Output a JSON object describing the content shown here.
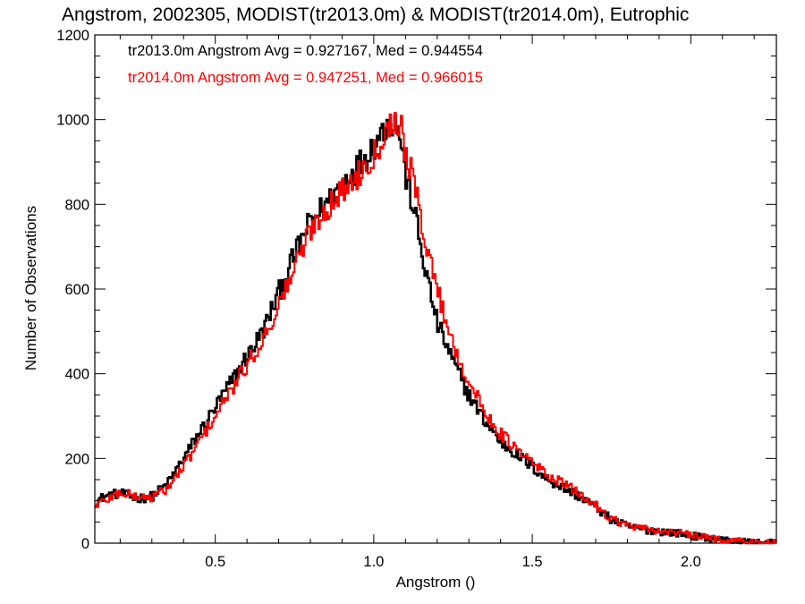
{
  "chart_data": {
    "type": "line",
    "title": "Angstrom, 2002305, MODIST(tr2013.0m) & MODIST(tr2014.0m), Eutrophic",
    "xlabel": "Angstrom ()",
    "ylabel": "Number of Observations",
    "xlim": [
      0.12,
      2.27
    ],
    "ylim": [
      0,
      1200
    ],
    "xticks": [
      0.5,
      1.0,
      1.5,
      2.0
    ],
    "xtick_labels": [
      "0.5",
      "1.0",
      "1.5",
      "2.0"
    ],
    "yticks": [
      0,
      200,
      400,
      600,
      800,
      1000,
      1200
    ],
    "ytick_labels": [
      "0",
      "200",
      "400",
      "600",
      "800",
      "1000",
      "1200"
    ],
    "grid": false,
    "legend_position": "top-left",
    "series": [
      {
        "name": "tr2013.0m",
        "color": "#000000",
        "legend": "tr2013.0m Angstrom Avg = 0.927167, Med = 0.944554",
        "anchors": [
          [
            0.12,
            95
          ],
          [
            0.15,
            110
          ],
          [
            0.2,
            118
          ],
          [
            0.25,
            105
          ],
          [
            0.3,
            110
          ],
          [
            0.35,
            140
          ],
          [
            0.4,
            200
          ],
          [
            0.45,
            260
          ],
          [
            0.5,
            320
          ],
          [
            0.55,
            380
          ],
          [
            0.6,
            440
          ],
          [
            0.65,
            500
          ],
          [
            0.7,
            590
          ],
          [
            0.75,
            680
          ],
          [
            0.8,
            760
          ],
          [
            0.85,
            800
          ],
          [
            0.9,
            850
          ],
          [
            0.95,
            890
          ],
          [
            1.0,
            940
          ],
          [
            1.05,
            1000
          ],
          [
            1.08,
            980
          ],
          [
            1.1,
            870
          ],
          [
            1.13,
            780
          ],
          [
            1.15,
            690
          ],
          [
            1.2,
            520
          ],
          [
            1.25,
            430
          ],
          [
            1.3,
            350
          ],
          [
            1.35,
            290
          ],
          [
            1.4,
            240
          ],
          [
            1.45,
            210
          ],
          [
            1.5,
            180
          ],
          [
            1.55,
            150
          ],
          [
            1.6,
            130
          ],
          [
            1.65,
            110
          ],
          [
            1.7,
            85
          ],
          [
            1.75,
            55
          ],
          [
            1.8,
            40
          ],
          [
            1.85,
            32
          ],
          [
            1.9,
            28
          ],
          [
            1.95,
            25
          ],
          [
            2.0,
            18
          ],
          [
            2.05,
            12
          ],
          [
            2.1,
            8
          ],
          [
            2.15,
            4
          ],
          [
            2.2,
            1
          ],
          [
            2.27,
            0
          ]
        ]
      },
      {
        "name": "tr2014.0m",
        "color": "#ff0000",
        "legend": "tr2014.0m Angstrom Avg = 0.947251, Med = 0.966015",
        "anchors": [
          [
            0.12,
            90
          ],
          [
            0.15,
            100
          ],
          [
            0.2,
            120
          ],
          [
            0.25,
            110
          ],
          [
            0.3,
            108
          ],
          [
            0.35,
            130
          ],
          [
            0.4,
            180
          ],
          [
            0.45,
            240
          ],
          [
            0.5,
            300
          ],
          [
            0.55,
            360
          ],
          [
            0.6,
            420
          ],
          [
            0.65,
            480
          ],
          [
            0.7,
            560
          ],
          [
            0.75,
            650
          ],
          [
            0.8,
            740
          ],
          [
            0.85,
            790
          ],
          [
            0.9,
            830
          ],
          [
            0.95,
            870
          ],
          [
            1.0,
            920
          ],
          [
            1.05,
            990
          ],
          [
            1.08,
            1000
          ],
          [
            1.1,
            930
          ],
          [
            1.13,
            840
          ],
          [
            1.15,
            760
          ],
          [
            1.2,
            600
          ],
          [
            1.25,
            470
          ],
          [
            1.3,
            380
          ],
          [
            1.35,
            310
          ],
          [
            1.4,
            260
          ],
          [
            1.45,
            220
          ],
          [
            1.5,
            190
          ],
          [
            1.55,
            160
          ],
          [
            1.6,
            140
          ],
          [
            1.65,
            115
          ],
          [
            1.7,
            90
          ],
          [
            1.75,
            58
          ],
          [
            1.8,
            42
          ],
          [
            1.85,
            33
          ],
          [
            1.9,
            29
          ],
          [
            1.95,
            26
          ],
          [
            2.0,
            19
          ],
          [
            2.05,
            13
          ],
          [
            2.1,
            9
          ],
          [
            2.15,
            6
          ],
          [
            2.2,
            1
          ],
          [
            2.27,
            0
          ]
        ]
      }
    ]
  }
}
